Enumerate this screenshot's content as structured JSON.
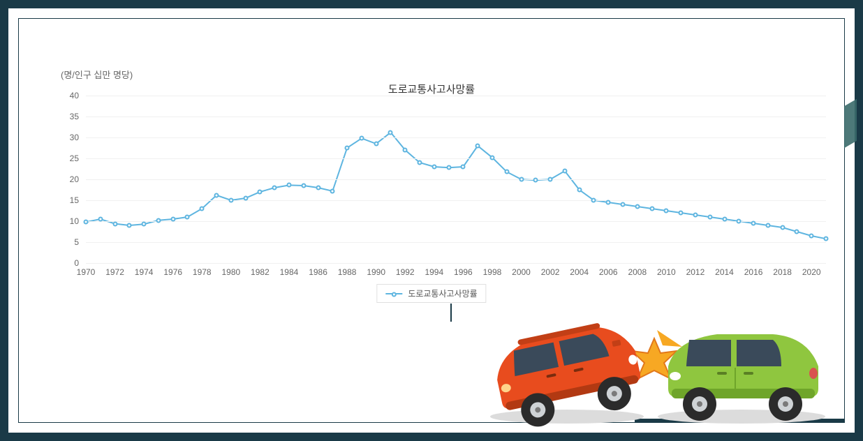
{
  "frame": {
    "outer_border_color": "#1a3a47",
    "inner_border_color": "#1a3a47",
    "background_color": "#ffffff"
  },
  "chart": {
    "type": "line",
    "title": "도로교통사고사망률",
    "y_unit_label": "(명/인구 십만 명당)",
    "title_fontsize": 15,
    "title_color": "#333333",
    "label_fontsize": 12,
    "label_color": "#666666",
    "line_color": "#5eb5e0",
    "line_width": 2,
    "marker_style": "circle",
    "marker_size": 7,
    "marker_fill": "#ffffff",
    "marker_border": "#5eb5e0",
    "background_color": "#ffffff",
    "grid_color": "#f0f0f0",
    "ylim": [
      0,
      40
    ],
    "ytick_step": 5,
    "xlim": [
      1970,
      2021
    ],
    "xtick_step": 2,
    "xtick_start": 1970,
    "xtick_end": 2020,
    "legend": {
      "label": "도로교통사고사망률",
      "position": "bottom-center",
      "border_color": "#e0e0e0",
      "text_color": "#555555"
    },
    "series": {
      "name": "도로교통사고사망률",
      "years": [
        1970,
        1971,
        1972,
        1973,
        1974,
        1975,
        1976,
        1977,
        1978,
        1979,
        1980,
        1981,
        1982,
        1983,
        1984,
        1985,
        1986,
        1987,
        1988,
        1989,
        1990,
        1991,
        1992,
        1993,
        1994,
        1995,
        1996,
        1997,
        1998,
        1999,
        2000,
        2001,
        2002,
        2003,
        2004,
        2005,
        2006,
        2007,
        2008,
        2009,
        2010,
        2011,
        2012,
        2013,
        2014,
        2015,
        2016,
        2017,
        2018,
        2019,
        2020,
        2021
      ],
      "values": [
        9.8,
        10.5,
        9.4,
        9.0,
        9.3,
        10.2,
        10.5,
        11.0,
        13.0,
        16.2,
        15.0,
        15.5,
        17.0,
        18.0,
        18.6,
        18.5,
        18.0,
        17.2,
        27.5,
        29.8,
        28.5,
        31.2,
        27.0,
        24.0,
        23.0,
        22.8,
        23.0,
        28.0,
        25.2,
        21.8,
        20.0,
        19.8,
        20.0,
        22.0,
        17.5,
        15.0,
        14.5,
        14.0,
        13.5,
        13.0,
        12.5,
        12.0,
        11.5,
        11.0,
        10.5,
        10.0,
        9.5,
        9.0,
        8.5,
        7.5,
        6.5,
        5.8
      ]
    }
  },
  "illustration": {
    "description": "two-car crash clipart",
    "left_car_color": "#e84c1e",
    "right_car_color": "#8fc63f",
    "impact_color": "#f7a823",
    "wheel_color": "#2b2b2b",
    "window_color": "#3a4a5a",
    "shadow_color": "#dcdcdc"
  }
}
